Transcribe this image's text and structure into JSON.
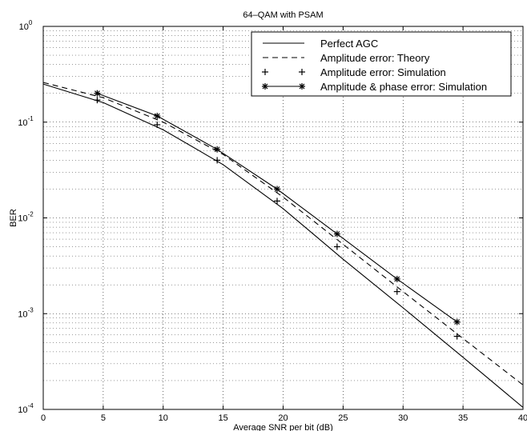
{
  "chart_data": {
    "type": "line",
    "title": "64–QAM with PSAM",
    "xlabel": "Average SNR per bit (dB)",
    "ylabel": "BER",
    "xlim": [
      0,
      40
    ],
    "ylim": [
      0.0001,
      1
    ],
    "yscale": "log",
    "grid": true,
    "legend_position": "top-right",
    "x_ticks": [
      "0",
      "5",
      "10",
      "15",
      "20",
      "25",
      "30",
      "35",
      "40"
    ],
    "y_ticks": [
      {
        "base": "10",
        "exp": "0"
      },
      {
        "base": "10",
        "exp": "-1"
      },
      {
        "base": "10",
        "exp": "-2"
      },
      {
        "base": "10",
        "exp": "-3"
      },
      {
        "base": "10",
        "exp": "-4"
      }
    ],
    "series": [
      {
        "name": "Perfect AGC",
        "style": "solid",
        "marker": "none",
        "x": [
          0,
          5,
          10,
          15,
          20,
          25,
          30,
          35,
          40
        ],
        "y": [
          0.25,
          0.16,
          0.083,
          0.036,
          0.0125,
          0.0037,
          0.00115,
          0.00035,
          0.000105
        ]
      },
      {
        "name": "Amplitude error: Theory",
        "style": "dashed",
        "marker": "none",
        "x": [
          0,
          5,
          10,
          15,
          20,
          25,
          30,
          35,
          40
        ],
        "y": [
          0.26,
          0.18,
          0.1,
          0.046,
          0.0165,
          0.0053,
          0.0017,
          0.00055,
          0.00018
        ]
      },
      {
        "name": "Amplitude error: Simulation",
        "style": "none",
        "marker": "plus",
        "x": [
          4.5,
          9.5,
          14.5,
          19.5,
          24.5,
          29.5,
          34.5
        ],
        "y": [
          0.17,
          0.094,
          0.04,
          0.015,
          0.005,
          0.0017,
          0.00058
        ]
      },
      {
        "name": "Amplitude & phase error: Simulation",
        "style": "solid",
        "marker": "star",
        "x": [
          4.5,
          9.5,
          14.5,
          19.5,
          24.5,
          29.5,
          34.5
        ],
        "y": [
          0.2,
          0.116,
          0.052,
          0.02,
          0.0068,
          0.0023,
          0.00082
        ]
      }
    ]
  }
}
